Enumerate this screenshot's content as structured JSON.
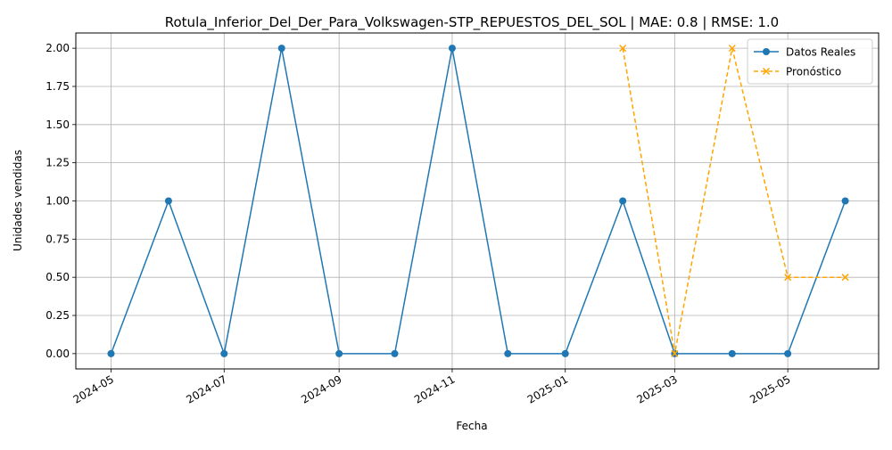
{
  "chart_data": {
    "type": "line",
    "title": "Rotula_Inferior_Del_Der_Para_Volkswagen-STP_REPUESTOS_DEL_SOL | MAE: 0.8 | RMSE: 1.0",
    "xlabel": "Fecha",
    "ylabel": "Unidades vendidas",
    "xlim": [
      "2024-04-12",
      "2025-06-19"
    ],
    "ylim": [
      -0.1,
      2.1
    ],
    "x_ticks": [
      "2024-05",
      "2024-07",
      "2024-09",
      "2024-11",
      "2025-01",
      "2025-03",
      "2025-05"
    ],
    "y_ticks": [
      "0.00",
      "0.25",
      "0.50",
      "0.75",
      "1.00",
      "1.25",
      "1.50",
      "1.75",
      "2.00"
    ],
    "grid": true,
    "legend_position": "top-right",
    "series": [
      {
        "name": "Datos Reales",
        "color": "#1f77b4",
        "marker": "circle",
        "line_style": "solid",
        "points": [
          {
            "x": "2024-05-01",
            "y": 0
          },
          {
            "x": "2024-06-01",
            "y": 1
          },
          {
            "x": "2024-07-01",
            "y": 0
          },
          {
            "x": "2024-08-01",
            "y": 2
          },
          {
            "x": "2024-09-01",
            "y": 0
          },
          {
            "x": "2024-10-01",
            "y": 0
          },
          {
            "x": "2024-11-01",
            "y": 2
          },
          {
            "x": "2024-12-01",
            "y": 0
          },
          {
            "x": "2025-01-01",
            "y": 0
          },
          {
            "x": "2025-02-01",
            "y": 1
          },
          {
            "x": "2025-03-01",
            "y": 0
          },
          {
            "x": "2025-04-01",
            "y": 0
          },
          {
            "x": "2025-05-01",
            "y": 0
          },
          {
            "x": "2025-06-01",
            "y": 1
          }
        ]
      },
      {
        "name": "Pronóstico",
        "color": "#ffa500",
        "marker": "x",
        "line_style": "dashed",
        "points": [
          {
            "x": "2025-02-01",
            "y": 2
          },
          {
            "x": "2025-03-01",
            "y": 0
          },
          {
            "x": "2025-04-01",
            "y": 2
          },
          {
            "x": "2025-05-01",
            "y": 0.5
          },
          {
            "x": "2025-06-01",
            "y": 0.5
          }
        ]
      }
    ]
  }
}
